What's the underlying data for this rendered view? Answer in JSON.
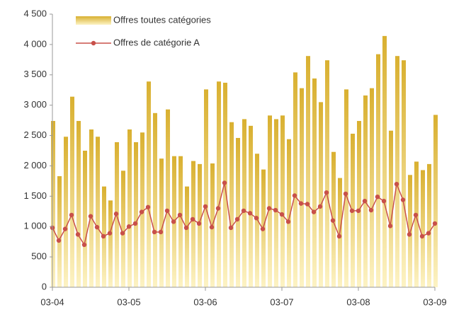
{
  "chart_data": {
    "type": "bar",
    "x": [
      0,
      1,
      2,
      3,
      4,
      5,
      6,
      7,
      8,
      9,
      10,
      11,
      12,
      13,
      14,
      15,
      16,
      17,
      18,
      19,
      20,
      21,
      22,
      23,
      24,
      25,
      26,
      27,
      28,
      29,
      30,
      31,
      32,
      33,
      34,
      35,
      36,
      37,
      38,
      39,
      40,
      41,
      42,
      43,
      44,
      45,
      46,
      47,
      48,
      49,
      50,
      51,
      52,
      53,
      54,
      55,
      56,
      57,
      58,
      59,
      60
    ],
    "series": [
      {
        "name": "Offres toutes catégories",
        "type": "bar",
        "color": "#d9b030",
        "values": [
          2740,
          1830,
          2480,
          3140,
          2740,
          2250,
          2600,
          2480,
          1660,
          1430,
          2390,
          1920,
          2600,
          2390,
          2550,
          3390,
          2870,
          2120,
          2930,
          2160,
          2160,
          1660,
          2080,
          2030,
          3260,
          2040,
          3390,
          3370,
          2720,
          2460,
          2770,
          2660,
          2200,
          1940,
          2830,
          2770,
          2830,
          2440,
          3540,
          3280,
          3810,
          3440,
          3050,
          3740,
          2230,
          1800,
          3260,
          2530,
          2740,
          3160,
          3280,
          3840,
          4140,
          2580,
          3810,
          3740,
          1850,
          2070,
          1930,
          2030,
          2840
        ]
      },
      {
        "name": "Offres de catégorie A",
        "type": "line",
        "color": "#c8504a",
        "values": [
          980,
          770,
          960,
          1190,
          870,
          700,
          1170,
          990,
          840,
          890,
          1210,
          890,
          1000,
          1050,
          1240,
          1320,
          910,
          910,
          1260,
          1080,
          1190,
          980,
          1120,
          1050,
          1330,
          990,
          1300,
          1720,
          980,
          1120,
          1260,
          1220,
          1140,
          960,
          1300,
          1270,
          1200,
          1080,
          1510,
          1380,
          1370,
          1240,
          1330,
          1560,
          1100,
          840,
          1540,
          1260,
          1260,
          1420,
          1270,
          1490,
          1420,
          1010,
          1700,
          1440,
          870,
          1190,
          840,
          890,
          1050
        ]
      }
    ],
    "xlim": [
      0,
      60
    ],
    "xticks": [
      {
        "value": 0,
        "label": "03-04"
      },
      {
        "value": 12,
        "label": "03-05"
      },
      {
        "value": 24,
        "label": "03-06"
      },
      {
        "value": 36,
        "label": "03-07"
      },
      {
        "value": 48,
        "label": "03-08"
      },
      {
        "value": 60,
        "label": "03-09"
      }
    ],
    "ylim": [
      0,
      4500
    ],
    "yticks": [
      0,
      500,
      {
        "value": 1000,
        "label": "1 000"
      },
      {
        "value": 1500,
        "label": "1 500"
      },
      {
        "value": 2000,
        "label": "2 000"
      },
      {
        "value": 2500,
        "label": "2 500"
      },
      {
        "value": 3000,
        "label": "3 000"
      },
      {
        "value": 3500,
        "label": "3 500"
      },
      {
        "value": 4000,
        "label": "4 000"
      },
      {
        "value": 4500,
        "label": "4 500"
      }
    ],
    "legend": "top-left"
  }
}
